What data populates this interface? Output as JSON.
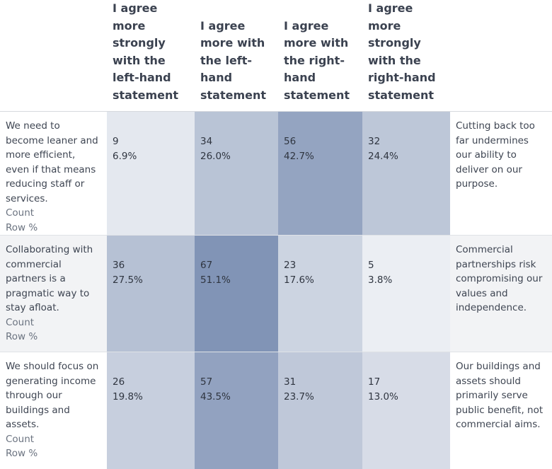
{
  "table": {
    "columns": [
      "I agree more strongly with the left-hand statement",
      "I agree more with the left-hand statement",
      "I agree more with the right-hand statement",
      "I agree more strongly with the right-hand statement"
    ],
    "count_label": "Count",
    "pct_label": "Row %",
    "rows": [
      {
        "left": "We need to become leaner and more efficient, even if that means reducing staff or services.",
        "right": "Cutting back too far undermines our ability to deliver on our purpose.",
        "cells": [
          {
            "count": "9",
            "pct": "6.9%"
          },
          {
            "count": "34",
            "pct": "26.0%"
          },
          {
            "count": "56",
            "pct": "42.7%"
          },
          {
            "count": "32",
            "pct": "24.4%"
          }
        ]
      },
      {
        "left": "Collaborating with commercial partners is a pragmatic way to stay afloat.",
        "right": "Commercial partnerships risk compromising our values and independence.",
        "cells": [
          {
            "count": "36",
            "pct": "27.5%"
          },
          {
            "count": "67",
            "pct": "51.1%"
          },
          {
            "count": "23",
            "pct": "17.6%"
          },
          {
            "count": "5",
            "pct": "3.8%"
          }
        ]
      },
      {
        "left": "We should focus on generating income through our buildings and assets.",
        "right": "Our buildings and assets should primarily serve public benefit, not commercial aims.",
        "cells": [
          {
            "count": "26",
            "pct": "19.8%"
          },
          {
            "count": "57",
            "pct": "43.5%"
          },
          {
            "count": "31",
            "pct": "23.7%"
          },
          {
            "count": "17",
            "pct": "13.0%"
          }
        ]
      }
    ]
  },
  "chart_data": {
    "type": "heatmap",
    "columns": [
      "I agree more strongly with the left-hand statement",
      "I agree more with the left-hand statement",
      "I agree more with the right-hand statement",
      "I agree more strongly with the right-hand statement"
    ],
    "rows": [
      {
        "left": "We need to become leaner and more efficient, even if that means reducing staff or services.",
        "right": "Cutting back too far undermines our ability to deliver on our purpose.",
        "counts": [
          9,
          34,
          56,
          32
        ],
        "row_pct": [
          6.9,
          26.0,
          42.7,
          24.4
        ]
      },
      {
        "left": "Collaborating with commercial partners is a pragmatic way to stay afloat.",
        "right": "Commercial partnerships risk compromising our values and independence.",
        "counts": [
          36,
          67,
          23,
          5
        ],
        "row_pct": [
          27.5,
          51.1,
          17.6,
          3.8
        ]
      },
      {
        "left": "We should focus on generating income through our buildings and assets.",
        "right": "Our buildings and assets should primarily serve public benefit, not commercial aims.",
        "counts": [
          26,
          57,
          31,
          17
        ],
        "row_pct": [
          19.8,
          43.5,
          23.7,
          13.0
        ]
      }
    ],
    "color_scale": {
      "low": "#f4f5f8",
      "high": "#8194b6"
    }
  }
}
